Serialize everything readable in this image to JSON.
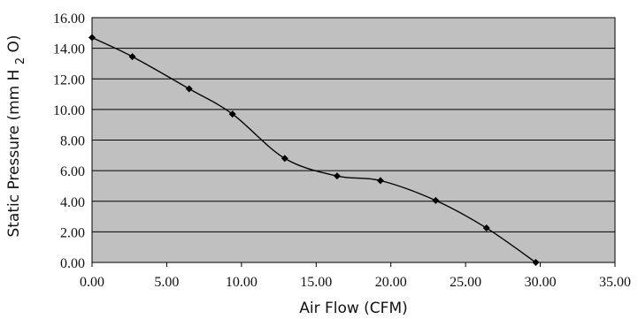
{
  "chart_data": {
    "type": "line",
    "title": "",
    "xlabel": "Air Flow (CFM)",
    "ylabel_main": "Static Pressure (mm H",
    "ylabel_sub": "2",
    "ylabel_end": "O)",
    "xlim": [
      0,
      35
    ],
    "ylim": [
      0,
      16
    ],
    "x_ticks": [
      0,
      5,
      10,
      15,
      20,
      25,
      30,
      35
    ],
    "y_ticks": [
      0,
      2,
      4,
      6,
      8,
      10,
      12,
      14,
      16
    ],
    "x_tick_labels": [
      "0.00",
      "5.00",
      "10.00",
      "15.00",
      "20.00",
      "25.00",
      "30.00",
      "35.00"
    ],
    "y_tick_labels": [
      "0.00",
      "2.00",
      "4.00",
      "6.00",
      "8.00",
      "10.00",
      "12.00",
      "14.00",
      "16.00"
    ],
    "grid": "horizontal",
    "colors": {
      "plot_background": "#c0c0c0",
      "line": "#000000",
      "marker": "#000000",
      "grid": "#000000"
    },
    "series": [
      {
        "x": [
          0.0,
          2.7,
          6.5,
          9.4,
          12.9,
          16.4,
          19.3,
          23.0,
          26.4,
          29.7
        ],
        "y": [
          14.7,
          13.45,
          11.35,
          9.7,
          6.8,
          5.65,
          5.35,
          4.05,
          2.25,
          0.0
        ]
      }
    ]
  }
}
